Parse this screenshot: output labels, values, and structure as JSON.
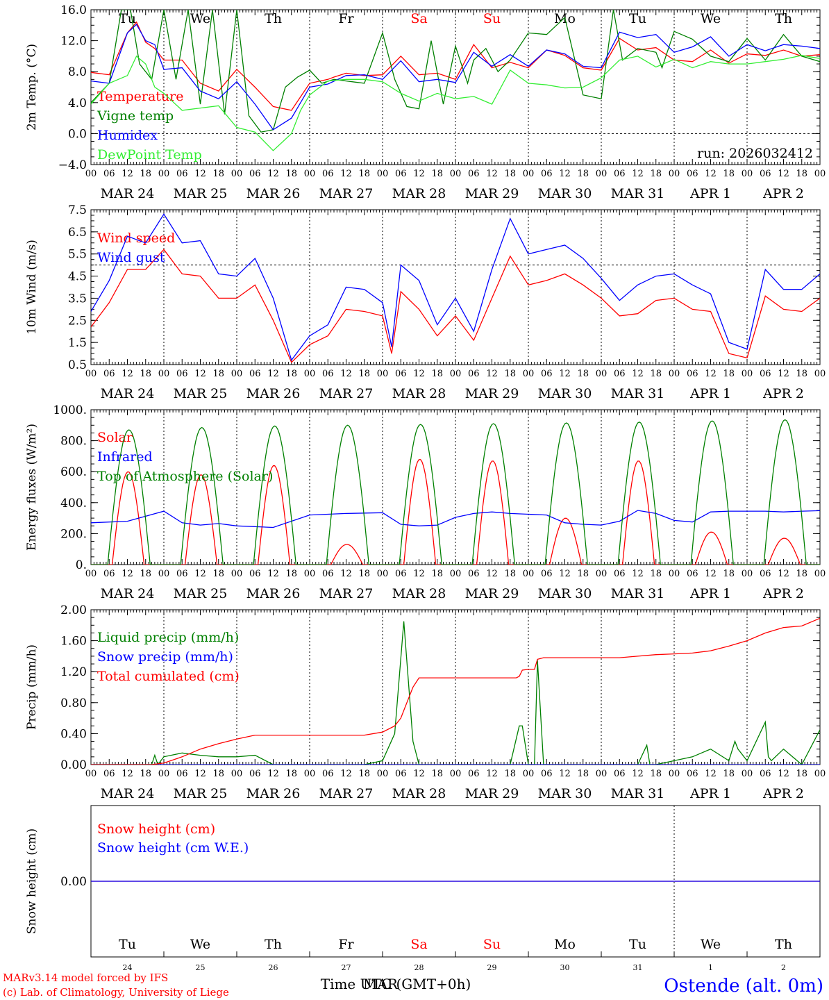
{
  "station": "Ostende (alt. 0m)",
  "credits": [
    "MARv3.14 model forced by IFS",
    "(c) Lab. of Climatology, University of Liege"
  ],
  "run_label": "run: 2026032412",
  "x_axis_title": "Time UTC (GMT+0h)",
  "x_axis_title_overlay": "MAR",
  "hour_ticks": [
    "00",
    "06",
    "12",
    "18"
  ],
  "hour_end_label": "00",
  "days": [
    {
      "date": "MAR 24",
      "weekday": "Tu",
      "num": "24",
      "weekend": false
    },
    {
      "date": "MAR 25",
      "weekday": "We",
      "num": "25",
      "weekend": false
    },
    {
      "date": "MAR 26",
      "weekday": "Th",
      "num": "26",
      "weekend": false
    },
    {
      "date": "MAR 27",
      "weekday": "Fr",
      "num": "27",
      "weekend": false
    },
    {
      "date": "MAR 28",
      "weekday": "Sa",
      "num": "28",
      "weekend": true
    },
    {
      "date": "MAR 29",
      "weekday": "Su",
      "num": "29",
      "weekend": true
    },
    {
      "date": "MAR 30",
      "weekday": "Mo",
      "num": "30",
      "weekend": false
    },
    {
      "date": "MAR 31",
      "weekday": "Tu",
      "num": "31",
      "weekend": false
    },
    {
      "date": "APR  1",
      "weekday": "We",
      "num": "1",
      "weekend": false
    },
    {
      "date": "APR  2",
      "weekday": "Th",
      "num": "2",
      "weekend": false
    }
  ],
  "colors": {
    "red": "#ff0000",
    "green": "#008000",
    "blue": "#0000ff",
    "lightgreen": "#33ee33",
    "weekend": "#ff0000",
    "grid": "#000000"
  },
  "chart_data": [
    {
      "id": "temp",
      "type": "line",
      "ylabel": "2m Temp. (°C)",
      "ylim": [
        -4,
        16
      ],
      "yticks": [
        -4,
        0,
        4,
        8,
        12,
        16
      ],
      "yticklabels": [
        "−4.0",
        "0.0",
        "4.0",
        "8.0",
        "12.0",
        "16.0"
      ],
      "hline": 0,
      "show_weekdays": true,
      "x_unit": "hours since MAR 24 00 UTC",
      "series": [
        {
          "name": "Temperature",
          "color": "red",
          "x": [
            0,
            6,
            12,
            15,
            18,
            21,
            24,
            30,
            36,
            42,
            48,
            54,
            60,
            66,
            72,
            78,
            80,
            84,
            90,
            96,
            102,
            108,
            114,
            120,
            126,
            132,
            138,
            144,
            150,
            156,
            162,
            168,
            174,
            180,
            186,
            192,
            198,
            204,
            210,
            216,
            222,
            228,
            234,
            240
          ],
          "values": [
            7.9,
            7.6,
            13,
            14.4,
            11.8,
            11,
            9.5,
            9.5,
            6.5,
            5.5,
            8.3,
            6,
            3.5,
            3,
            6.5,
            7,
            7.3,
            7.8,
            7.5,
            7.6,
            10,
            7.6,
            7.8,
            7,
            11.5,
            8.5,
            9.2,
            8.5,
            10.8,
            10.1,
            8.5,
            8.2,
            12.3,
            10.8,
            11.1,
            9.5,
            9.3,
            10.8,
            9.1,
            10.3,
            10.1,
            10.8,
            10,
            10.2
          ]
        },
        {
          "name": "Vigne temp",
          "color": "green",
          "x": [
            0,
            6,
            10,
            13,
            16,
            20,
            24,
            28,
            32,
            36,
            40,
            44,
            48,
            52,
            56,
            60,
            64,
            68,
            72,
            76,
            80,
            84,
            90,
            96,
            100,
            104,
            108,
            112,
            116,
            120,
            124,
            126,
            130,
            134,
            138,
            144,
            150,
            156,
            162,
            168,
            172,
            175,
            180,
            186,
            188,
            192,
            198,
            204,
            210,
            216,
            222,
            228,
            234,
            240
          ],
          "values": [
            4,
            6.5,
            16,
            16,
            9,
            7,
            16,
            7,
            16,
            3.8,
            16,
            2.5,
            16,
            2.3,
            0.2,
            0.5,
            6,
            7.3,
            8.2,
            6.5,
            7,
            6.8,
            6.5,
            13,
            7,
            3.5,
            3.2,
            12,
            3.8,
            11.3,
            6.5,
            9.5,
            11,
            8,
            9.5,
            13,
            12.8,
            15,
            5,
            4.5,
            16,
            9.5,
            11,
            10.5,
            8.5,
            13.2,
            12.2,
            10,
            9.3,
            12.3,
            9.5,
            12.8,
            10,
            9.3
          ]
        },
        {
          "name": "Humidex",
          "color": "blue",
          "x": [
            0,
            6,
            12,
            15,
            18,
            21,
            24,
            30,
            36,
            42,
            48,
            54,
            60,
            66,
            69,
            72,
            78,
            84,
            90,
            96,
            102,
            108,
            114,
            120,
            126,
            132,
            138,
            144,
            150,
            156,
            162,
            168,
            174,
            180,
            186,
            192,
            198,
            204,
            210,
            216,
            222,
            228,
            234,
            240
          ],
          "values": [
            6.8,
            6.5,
            13,
            14.1,
            12,
            11.5,
            8.3,
            8.5,
            5.5,
            4.5,
            6.7,
            3.8,
            0.5,
            2,
            4,
            6,
            6.4,
            7.5,
            7.6,
            7,
            9.4,
            6.7,
            7,
            6.6,
            10.5,
            8.7,
            10.2,
            8.7,
            10.8,
            10.3,
            8.7,
            8.5,
            13.1,
            12.4,
            12.8,
            10.5,
            11.2,
            12.5,
            10,
            11.5,
            10.7,
            11.5,
            11.3,
            11
          ]
        },
        {
          "name": "DewPoint Temp",
          "color": "lightgreen",
          "x": [
            0,
            6,
            12,
            15,
            18,
            21,
            24,
            30,
            36,
            42,
            48,
            54,
            60,
            66,
            69,
            72,
            78,
            84,
            90,
            96,
            102,
            108,
            114,
            120,
            126,
            132,
            138,
            144,
            150,
            156,
            162,
            168,
            174,
            180,
            186,
            192,
            198,
            204,
            210,
            216,
            222,
            228,
            234,
            240
          ],
          "values": [
            3.8,
            6.5,
            7.5,
            10,
            9,
            6,
            5.2,
            3,
            3.3,
            3.6,
            0.8,
            0.2,
            -2.2,
            0,
            3,
            5,
            6.8,
            7,
            7,
            6.7,
            5.2,
            4.2,
            5.2,
            4.5,
            4.8,
            3.8,
            8.2,
            6.5,
            6.3,
            5.9,
            6,
            7.2,
            9.5,
            10,
            8.6,
            9.6,
            8.5,
            9.3,
            9,
            9,
            9.3,
            9.6,
            10.1,
            9.7
          ]
        }
      ]
    },
    {
      "id": "wind",
      "type": "line",
      "ylabel": "10m Wind (m/s)",
      "ylim": [
        0.5,
        7.5
      ],
      "yticks": [
        0.5,
        1.5,
        2.5,
        3.5,
        4.5,
        5.5,
        6.5,
        7.5
      ],
      "yticklabels": [
        "0.5",
        "1.5",
        "2.5",
        "3.5",
        "4.5",
        "5.5",
        "6.5",
        "7.5"
      ],
      "hline": 5,
      "show_weekdays": false,
      "x_unit": "hours since MAR 24 00 UTC",
      "series": [
        {
          "name": "Wind speed",
          "color": "red",
          "x": [
            0,
            6,
            12,
            18,
            24,
            30,
            36,
            42,
            48,
            54,
            60,
            66,
            72,
            78,
            84,
            90,
            96,
            99,
            102,
            108,
            114,
            120,
            126,
            132,
            138,
            144,
            150,
            156,
            162,
            168,
            174,
            180,
            186,
            192,
            198,
            204,
            210,
            216,
            222,
            228,
            234,
            240
          ],
          "values": [
            2.2,
            3.3,
            4.8,
            4.8,
            5.7,
            4.6,
            4.5,
            3.5,
            3.5,
            4.1,
            2.5,
            0.6,
            1.4,
            1.8,
            3,
            2.9,
            2.7,
            1,
            3.8,
            3,
            1.8,
            2.7,
            1.6,
            3.5,
            5.4,
            4.1,
            4.3,
            4.6,
            4.1,
            3.5,
            2.7,
            2.8,
            3.4,
            3.5,
            3,
            2.9,
            1,
            0.8,
            3.6,
            3,
            2.9,
            3.5
          ]
        },
        {
          "name": "Wind gust",
          "color": "blue",
          "x": [
            0,
            6,
            12,
            18,
            24,
            30,
            36,
            42,
            48,
            54,
            60,
            66,
            72,
            78,
            84,
            90,
            96,
            99,
            102,
            108,
            114,
            120,
            126,
            132,
            138,
            144,
            150,
            156,
            162,
            168,
            174,
            180,
            186,
            192,
            198,
            204,
            210,
            216,
            222,
            228,
            234,
            240
          ],
          "values": [
            2.9,
            4.3,
            6.3,
            6,
            7.3,
            6,
            6.1,
            4.6,
            4.5,
            5.3,
            3.5,
            0.7,
            1.8,
            2.3,
            4,
            3.9,
            3.3,
            1.3,
            5,
            4.3,
            2.3,
            3.5,
            2,
            4.8,
            7.1,
            5.5,
            5.7,
            5.9,
            5.3,
            4.4,
            3.4,
            4.1,
            4.5,
            4.6,
            4.1,
            3.7,
            1.5,
            1.2,
            4.8,
            3.9,
            3.9,
            4.6
          ]
        }
      ]
    },
    {
      "id": "energy",
      "type": "line",
      "ylabel": "Energy fluxes (W/m²)",
      "ylim": [
        0,
        1000
      ],
      "yticks": [
        0,
        200,
        400,
        600,
        800,
        1000
      ],
      "yticklabels": [
        "0.",
        "200.",
        "400.",
        "600.",
        "800.",
        "1000."
      ],
      "show_weekdays": false,
      "x_unit": "hours since MAR 24 00 UTC",
      "series": [
        {
          "name": "Solar",
          "color": "red",
          "daily_peaks": [
            600,
            580,
            640,
            130,
            680,
            670,
            300,
            670,
            210,
            170
          ]
        },
        {
          "name": "Infrared",
          "color": "blue",
          "x": [
            0,
            12,
            24,
            30,
            36,
            42,
            48,
            54,
            60,
            72,
            84,
            96,
            102,
            108,
            114,
            120,
            126,
            132,
            138,
            144,
            150,
            156,
            162,
            168,
            174,
            180,
            186,
            192,
            198,
            204,
            210,
            216,
            222,
            228,
            234,
            240
          ],
          "values": [
            270,
            280,
            345,
            270,
            255,
            265,
            250,
            245,
            240,
            320,
            330,
            335,
            260,
            250,
            255,
            305,
            330,
            340,
            330,
            325,
            320,
            270,
            260,
            255,
            280,
            350,
            330,
            285,
            275,
            340,
            345,
            345,
            345,
            340,
            345,
            348
          ]
        },
        {
          "name": "Top of Atmosphere (Solar)",
          "color": "green",
          "daily_peaks": [
            870,
            885,
            895,
            900,
            905,
            910,
            915,
            920,
            928,
            935
          ]
        }
      ]
    },
    {
      "id": "precip",
      "type": "line",
      "ylabel": "Precip (mm/h)",
      "ylim": [
        0,
        2
      ],
      "yticks": [
        0,
        0.4,
        0.8,
        1.2,
        1.6,
        2.0
      ],
      "yticklabels": [
        "0.00",
        "0.40",
        "0.80",
        "1.20",
        "1.60",
        "2.00"
      ],
      "show_weekdays": false,
      "x_unit": "hours since MAR 24 00 UTC",
      "series": [
        {
          "name": "Liquid precip (mm/h)",
          "color": "green",
          "x": [
            0,
            20,
            21,
            22,
            24,
            30,
            36,
            42,
            48,
            54,
            60,
            66,
            72,
            78,
            84,
            90,
            96,
            100,
            103,
            106,
            108,
            114,
            120,
            126,
            132,
            138,
            141,
            142,
            144,
            146,
            147,
            149,
            150,
            156,
            162,
            168,
            174,
            180,
            183,
            184,
            186,
            192,
            198,
            204,
            210,
            212,
            213,
            216,
            222,
            223,
            224,
            228,
            234,
            240
          ],
          "values": [
            0,
            0,
            0.12,
            0,
            0.1,
            0.15,
            0.12,
            0.1,
            0.1,
            0.12,
            0,
            0,
            0,
            0,
            0,
            0,
            0.05,
            0.4,
            1.85,
            0.3,
            0,
            0,
            0,
            0,
            0,
            0,
            0.5,
            0.5,
            0,
            0,
            1.35,
            0,
            0,
            0,
            0,
            0,
            0,
            0,
            0.25,
            0,
            0,
            0.05,
            0.1,
            0.2,
            0.05,
            0.3,
            0.2,
            0.05,
            0.55,
            0.1,
            0.05,
            0.2,
            0,
            0.45
          ]
        },
        {
          "name": "Snow precip (mm/h)",
          "color": "blue",
          "x": [
            0,
            240
          ],
          "values": [
            0,
            0
          ]
        },
        {
          "name": "Total cumulated (cm)",
          "color": "red",
          "x": [
            0,
            20,
            24,
            30,
            36,
            42,
            48,
            54,
            60,
            66,
            72,
            78,
            84,
            90,
            96,
            100,
            102,
            104,
            106,
            108,
            114,
            120,
            126,
            132,
            138,
            140,
            141,
            142,
            144,
            146,
            147,
            149,
            150,
            156,
            162,
            168,
            174,
            180,
            186,
            192,
            198,
            204,
            210,
            216,
            222,
            228,
            234,
            240
          ],
          "values": [
            0,
            0,
            0.02,
            0.1,
            0.2,
            0.27,
            0.33,
            0.38,
            0.38,
            0.38,
            0.38,
            0.38,
            0.38,
            0.38,
            0.42,
            0.5,
            0.6,
            0.8,
            1,
            1.12,
            1.12,
            1.12,
            1.12,
            1.12,
            1.12,
            1.12,
            1.14,
            1.22,
            1.23,
            1.23,
            1.36,
            1.38,
            1.38,
            1.38,
            1.38,
            1.38,
            1.38,
            1.4,
            1.42,
            1.43,
            1.44,
            1.47,
            1.53,
            1.6,
            1.7,
            1.77,
            1.79,
            1.89
          ]
        }
      ]
    },
    {
      "id": "snow",
      "type": "line",
      "ylabel": "Snow height (cm)",
      "ylim": [
        -1,
        1
      ],
      "yticks": [
        0
      ],
      "yticklabels": [
        "0.00"
      ],
      "show_weekdays": true,
      "x_unit": "hours since MAR 24 00 UTC",
      "series": [
        {
          "name": "Snow height (cm)",
          "color": "red",
          "x": [
            0,
            240
          ],
          "values": [
            0,
            0
          ]
        },
        {
          "name": "Snow height (cm W.E.)",
          "color": "blue",
          "x": [
            0,
            240
          ],
          "values": [
            0,
            0
          ]
        }
      ]
    }
  ]
}
